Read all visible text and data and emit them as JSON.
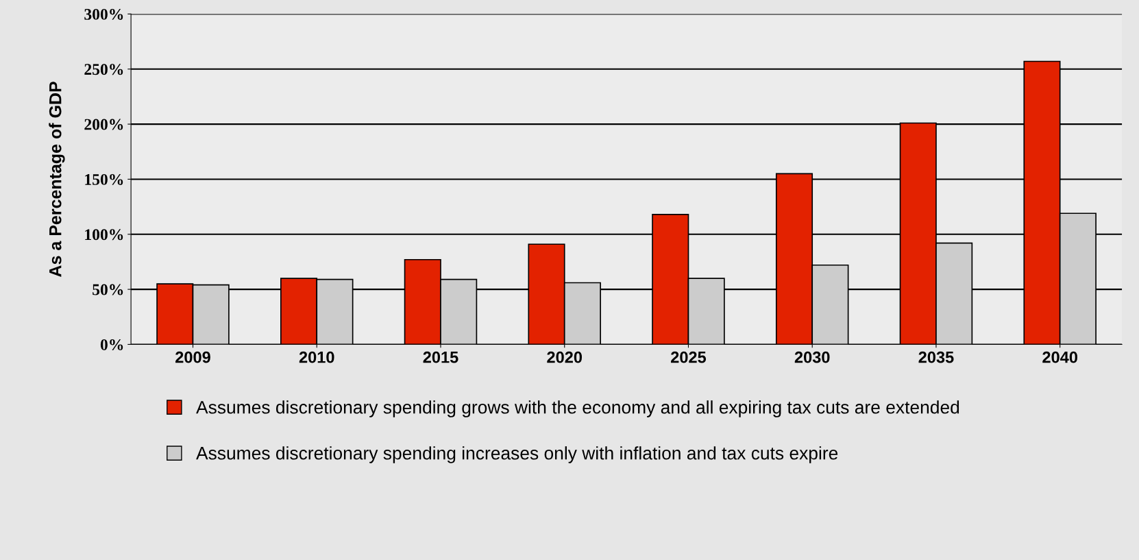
{
  "chart_data": {
    "type": "bar",
    "ylabel": "As a Percentage of GDP",
    "categories": [
      "2009",
      "2010",
      "2015",
      "2020",
      "2025",
      "2030",
      "2035",
      "2040"
    ],
    "series": [
      {
        "name": "Assumes discretionary spending grows with the economy and all expiring tax cuts are extended",
        "color": "#e32200",
        "values": [
          55,
          60,
          77,
          91,
          118,
          155,
          201,
          257
        ]
      },
      {
        "name": "Assumes discretionary spending increases only with inflation and tax cuts expire",
        "color": "#cccccc",
        "values": [
          54,
          59,
          59,
          56,
          60,
          72,
          92,
          119
        ]
      }
    ],
    "ylim": [
      0,
      300
    ],
    "yticks": [
      {
        "value": 0,
        "label": "0%"
      },
      {
        "value": 50,
        "label": "50%"
      },
      {
        "value": 100,
        "label": "100%"
      },
      {
        "value": 150,
        "label": "150%"
      },
      {
        "value": 200,
        "label": "200%"
      },
      {
        "value": 250,
        "label": "250%"
      },
      {
        "value": 300,
        "label": "300%"
      }
    ],
    "grid": "y",
    "legend": "bottom"
  }
}
